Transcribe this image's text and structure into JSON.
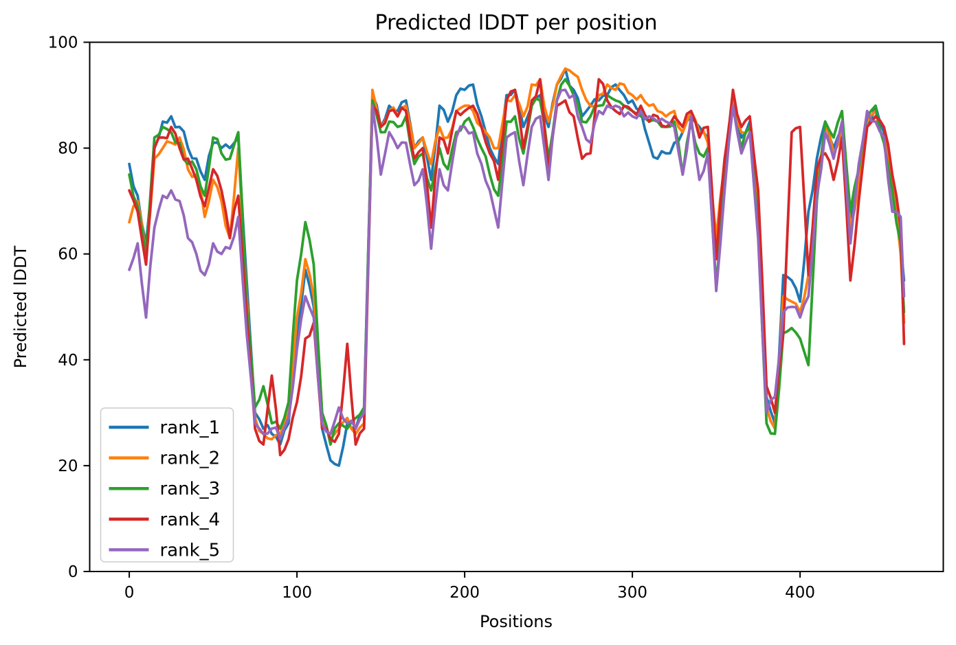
{
  "figure": {
    "background": "#ffffff",
    "frame_color": "#000000"
  },
  "chart_data": {
    "type": "line",
    "title": "Predicted lDDT per position",
    "xlabel": "Positions",
    "ylabel": "Predicted lDDT",
    "xlim": [
      -23.6,
      485.4
    ],
    "ylim": [
      0,
      100
    ],
    "x_ticks": [
      0,
      100,
      200,
      300,
      400
    ],
    "y_ticks": [
      0,
      20,
      40,
      60,
      80,
      100
    ],
    "grid": false,
    "legend_position": "lower left",
    "x": [
      0,
      5,
      10,
      15,
      20,
      25,
      30,
      35,
      40,
      45,
      50,
      55,
      60,
      65,
      70,
      75,
      80,
      85,
      90,
      95,
      100,
      105,
      110,
      115,
      120,
      125,
      130,
      135,
      140,
      145,
      150,
      155,
      160,
      165,
      170,
      175,
      180,
      185,
      190,
      195,
      200,
      205,
      210,
      215,
      220,
      225,
      230,
      235,
      240,
      245,
      250,
      255,
      260,
      265,
      270,
      275,
      280,
      285,
      290,
      295,
      300,
      305,
      310,
      315,
      320,
      325,
      330,
      335,
      340,
      345,
      350,
      355,
      360,
      365,
      370,
      375,
      380,
      385,
      390,
      395,
      400,
      405,
      410,
      415,
      420,
      425,
      430,
      435,
      440,
      445,
      450,
      455,
      460,
      462
    ],
    "series": [
      {
        "name": "rank_1",
        "color": "#1f77b4",
        "values": [
          77,
          71,
          62,
          80,
          85,
          86,
          84,
          80,
          78,
          74,
          81,
          80,
          80,
          82,
          55,
          30,
          27,
          26,
          24,
          28,
          45,
          57,
          50,
          27,
          21,
          20,
          28,
          27,
          30,
          90,
          84,
          88,
          87,
          89,
          80,
          82,
          74,
          88,
          85,
          90,
          91,
          92,
          86,
          80,
          77,
          90,
          91,
          84,
          88,
          90,
          84,
          92,
          95,
          91,
          86,
          88,
          89,
          90,
          92,
          90,
          89,
          87,
          81,
          78,
          79,
          81,
          83,
          86,
          84,
          82,
          60,
          75,
          89,
          82,
          85,
          70,
          33,
          28,
          56,
          55,
          51,
          68,
          78,
          85,
          80,
          84,
          66,
          75,
          84,
          88,
          83,
          74,
          64,
          55
        ]
      },
      {
        "name": "rank_2",
        "color": "#ff7f0e",
        "values": [
          66,
          70,
          60,
          78,
          80,
          81,
          82,
          76,
          75,
          67,
          74,
          70,
          63,
          80,
          52,
          29,
          26,
          25,
          26,
          30,
          48,
          59,
          52,
          30,
          25,
          27,
          29,
          26,
          28,
          91,
          84,
          87,
          86,
          88,
          80,
          82,
          77,
          84,
          82,
          87,
          88,
          87,
          84,
          82,
          80,
          89,
          90,
          86,
          92,
          93,
          85,
          92,
          95,
          94,
          91,
          88,
          90,
          92,
          91,
          92,
          90,
          90,
          88,
          87,
          86,
          87,
          83,
          87,
          83,
          81,
          63,
          77,
          89,
          83,
          84,
          68,
          31,
          27,
          52,
          51,
          49,
          56,
          72,
          84,
          79,
          83,
          65,
          73,
          85,
          87,
          82,
          73,
          60,
          47
        ]
      },
      {
        "name": "rank_3",
        "color": "#2ca02c",
        "values": [
          75,
          69,
          60,
          82,
          84,
          83,
          81,
          77,
          76,
          71,
          82,
          79,
          78,
          83,
          50,
          31,
          35,
          28,
          27,
          32,
          55,
          66,
          58,
          30,
          24,
          28,
          27,
          29,
          31,
          89,
          83,
          85,
          84,
          86,
          77,
          79,
          72,
          80,
          76,
          83,
          85,
          84,
          80,
          75,
          71,
          85,
          86,
          79,
          88,
          89,
          78,
          89,
          93,
          90,
          85,
          86,
          88,
          90,
          89,
          88,
          87,
          86,
          85,
          85,
          84,
          85,
          75,
          85,
          79,
          80,
          54,
          74,
          88,
          80,
          84,
          65,
          28,
          26,
          45,
          46,
          44,
          39,
          70,
          85,
          82,
          87,
          68,
          76,
          86,
          88,
          81,
          72,
          62,
          49
        ]
      },
      {
        "name": "rank_4",
        "color": "#d62728",
        "values": [
          72,
          68,
          58,
          80,
          82,
          84,
          80,
          78,
          74,
          69,
          76,
          72,
          63,
          71,
          48,
          27,
          24,
          37,
          22,
          25,
          32,
          44,
          47,
          27,
          25,
          26,
          43,
          24,
          27,
          88,
          84,
          87,
          86,
          87,
          78,
          80,
          65,
          82,
          79,
          87,
          87,
          88,
          84,
          79,
          74,
          89,
          91,
          80,
          89,
          93,
          76,
          88,
          89,
          86,
          78,
          79,
          93,
          89,
          87,
          88,
          87,
          88,
          85,
          86,
          84,
          86,
          84,
          87,
          82,
          84,
          59,
          78,
          91,
          84,
          86,
          72,
          35,
          30,
          45,
          83,
          84,
          56,
          76,
          79,
          74,
          82,
          55,
          70,
          84,
          86,
          84,
          75,
          65,
          43
        ]
      },
      {
        "name": "rank_5",
        "color": "#9467bd",
        "values": [
          57,
          62,
          48,
          65,
          71,
          72,
          70,
          63,
          60,
          56,
          62,
          60,
          61,
          67,
          45,
          28,
          26,
          27,
          25,
          29,
          42,
          52,
          48,
          28,
          26,
          31,
          28,
          27,
          30,
          88,
          75,
          83,
          80,
          81,
          73,
          76,
          61,
          76,
          72,
          82,
          84,
          83,
          77,
          72,
          65,
          82,
          83,
          73,
          84,
          86,
          74,
          89,
          91,
          90,
          84,
          81,
          87,
          88,
          88,
          86,
          86,
          87,
          86,
          85,
          85,
          84,
          75,
          86,
          74,
          79,
          53,
          72,
          88,
          79,
          83,
          63,
          30,
          33,
          49,
          50,
          48,
          52,
          71,
          83,
          78,
          85,
          62,
          77,
          87,
          85,
          82,
          68,
          67,
          52
        ]
      }
    ]
  }
}
